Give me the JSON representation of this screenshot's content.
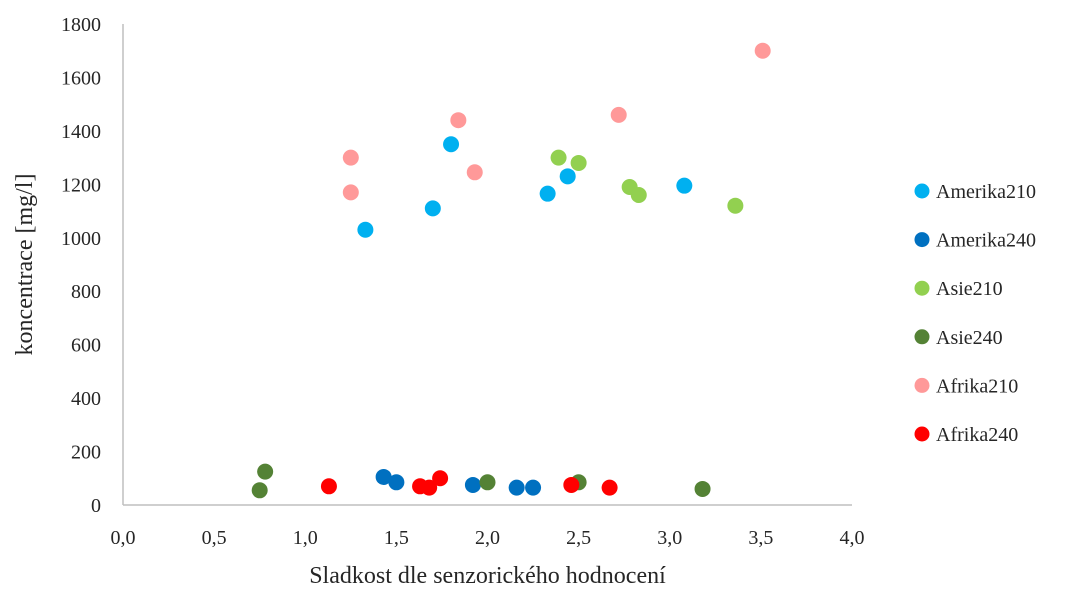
{
  "chart_data": {
    "type": "scatter",
    "title": "",
    "xlabel": "Sladkost dle senzorického hodnocení",
    "ylabel": "koncentrace [mg/l]",
    "xlim": [
      0,
      4
    ],
    "ylim": [
      0,
      1800
    ],
    "x_ticks": [
      "0,0",
      "0,5",
      "1,0",
      "1,5",
      "2,0",
      "2,5",
      "3,0",
      "3,5",
      "4,0"
    ],
    "y_ticks": [
      "0",
      "200",
      "400",
      "600",
      "800",
      "1000",
      "1200",
      "1400",
      "1600",
      "1800"
    ],
    "grid": false,
    "legend_position": "right",
    "series": [
      {
        "name": "Amerika210",
        "color": "#00B0F0",
        "x": [
          1.33,
          1.7,
          1.8,
          2.33,
          2.44,
          3.08
        ],
        "y": [
          1030,
          1110,
          1350,
          1165,
          1230,
          1195
        ]
      },
      {
        "name": "Amerika240",
        "color": "#0070C0",
        "x": [
          1.43,
          1.5,
          1.92,
          2.16,
          2.25
        ],
        "y": [
          105,
          85,
          75,
          65,
          65
        ]
      },
      {
        "name": "Asie210",
        "color": "#92D050",
        "x": [
          2.39,
          2.5,
          2.78,
          2.83,
          3.36
        ],
        "y": [
          1300,
          1280,
          1190,
          1160,
          1120
        ]
      },
      {
        "name": "Asie240",
        "color": "#548235",
        "x": [
          0.75,
          0.78,
          2.0,
          2.5,
          3.18
        ],
        "y": [
          55,
          125,
          85,
          85,
          60
        ]
      },
      {
        "name": "Afrika210",
        "color": "#FF9999",
        "x": [
          1.25,
          1.25,
          1.84,
          1.93,
          2.72,
          3.51
        ],
        "y": [
          1300,
          1170,
          1440,
          1245,
          1460,
          1700
        ]
      },
      {
        "name": "Afrika240",
        "color": "#FF0000",
        "x": [
          1.13,
          1.63,
          1.68,
          1.74,
          2.46,
          2.67
        ],
        "y": [
          70,
          70,
          65,
          100,
          75,
          65
        ]
      }
    ]
  }
}
